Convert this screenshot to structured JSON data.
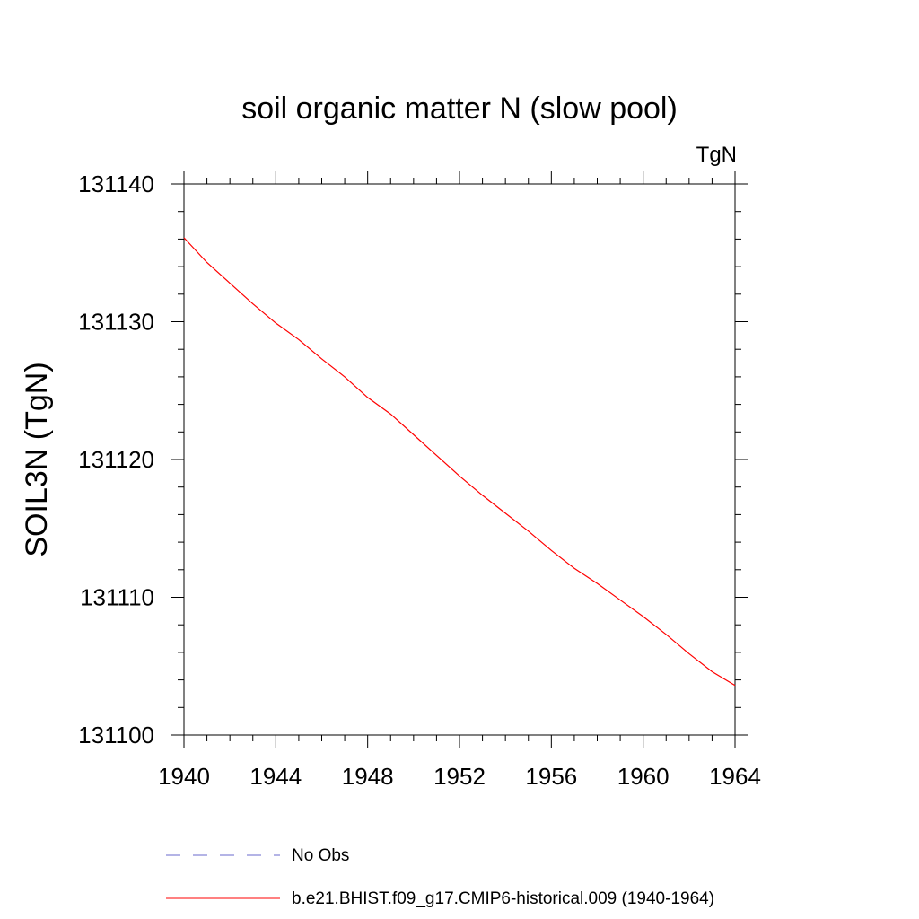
{
  "chart_data": {
    "type": "line",
    "title": "soil organic matter N (slow pool)",
    "units_label": "TgN",
    "ylabel": "SOIL3N  (TgN)",
    "xlabel": "",
    "xlim": [
      1940,
      1964
    ],
    "ylim": [
      131100,
      131140
    ],
    "x_ticks": [
      1940,
      1944,
      1948,
      1952,
      1956,
      1960,
      1964
    ],
    "y_ticks": [
      131100,
      131110,
      131120,
      131130,
      131140
    ],
    "grid": false,
    "legend_position": "bottom",
    "series": [
      {
        "name": "b.e21.BHIST.f09_g17.CMIP6-historical.009 (1940-1964)",
        "color": "#ff0000",
        "style": "solid",
        "x": [
          1940,
          1941,
          1942,
          1943,
          1944,
          1945,
          1946,
          1947,
          1948,
          1949,
          1950,
          1951,
          1952,
          1953,
          1954,
          1955,
          1956,
          1957,
          1958,
          1959,
          1960,
          1961,
          1962,
          1963,
          1964
        ],
        "y": [
          131136.1,
          131134.3,
          131132.8,
          131131.3,
          131129.9,
          131128.7,
          131127.3,
          131126.0,
          131124.5,
          131123.3,
          131121.8,
          131120.3,
          131118.8,
          131117.4,
          131116.1,
          131114.8,
          131113.4,
          131112.1,
          131111.0,
          131109.8,
          131108.6,
          131107.3,
          131105.9,
          131104.6,
          131103.6
        ]
      }
    ],
    "legend": [
      {
        "label": "No Obs",
        "color": "#6a6acd",
        "style": "dashed"
      },
      {
        "label": "b.e21.BHIST.f09_g17.CMIP6-historical.009 (1940-1964)",
        "color": "#ff0000",
        "style": "solid"
      }
    ]
  }
}
